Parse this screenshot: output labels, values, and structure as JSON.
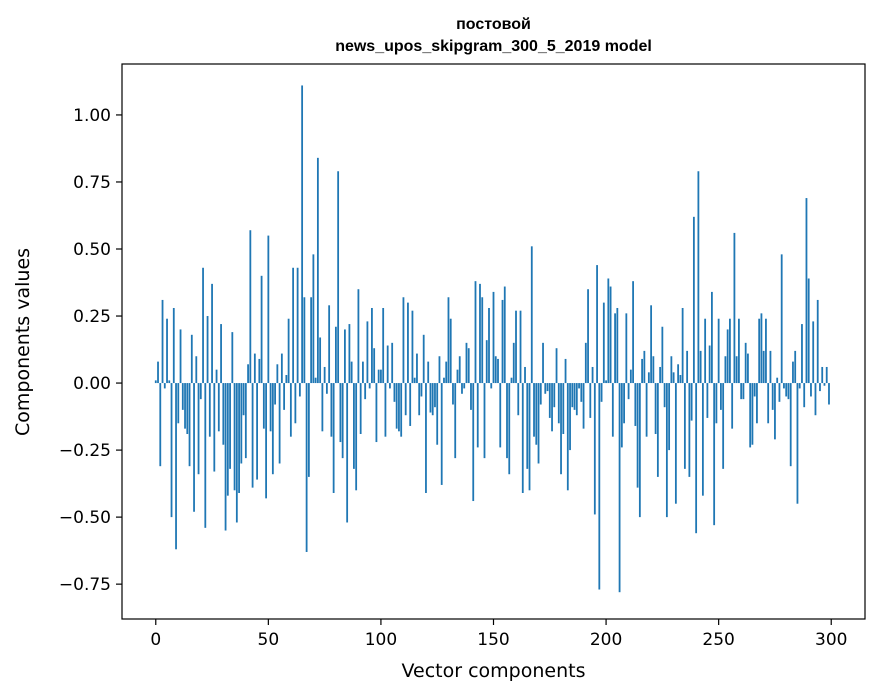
{
  "chart_data": {
    "type": "bar",
    "title_line1": "постовой",
    "title_line2": "news_upos_skipgram_300_5_2019 model",
    "xlabel": "Vector components",
    "ylabel": "Components values",
    "xlim": [
      -15,
      315
    ],
    "ylim": [
      -0.88,
      1.19
    ],
    "xticks": [
      0,
      50,
      100,
      150,
      200,
      250,
      300
    ],
    "yticks": [
      -0.75,
      -0.5,
      -0.25,
      0.0,
      0.25,
      0.5,
      0.75,
      1.0
    ],
    "ytick_labels": [
      "−0.75",
      "−0.50",
      "−0.25",
      "0.00",
      "0.25",
      "0.50",
      "0.75",
      "1.00"
    ],
    "bar_color": "#1f77b4",
    "grid": false,
    "values": [
      0.01,
      0.08,
      -0.31,
      0.31,
      -0.02,
      0.24,
      0.01,
      -0.5,
      0.28,
      -0.62,
      -0.15,
      0.2,
      -0.1,
      -0.17,
      -0.19,
      -0.31,
      0.18,
      -0.48,
      0.1,
      -0.34,
      -0.06,
      0.43,
      -0.54,
      0.25,
      -0.2,
      0.37,
      -0.33,
      0.05,
      -0.18,
      0.22,
      -0.23,
      -0.55,
      -0.42,
      -0.32,
      0.19,
      -0.4,
      -0.52,
      -0.41,
      -0.3,
      -0.12,
      -0.28,
      0.07,
      0.57,
      -0.39,
      0.11,
      -0.36,
      0.09,
      0.4,
      -0.17,
      -0.43,
      0.55,
      -0.18,
      -0.34,
      -0.08,
      0.07,
      -0.3,
      0.11,
      -0.1,
      0.03,
      0.24,
      -0.2,
      0.43,
      -0.15,
      0.43,
      -0.05,
      1.11,
      0.32,
      -0.63,
      -0.35,
      0.32,
      0.48,
      0.02,
      0.84,
      0.17,
      -0.18,
      0.06,
      -0.04,
      0.29,
      -0.2,
      -0.41,
      0.21,
      0.79,
      -0.22,
      -0.28,
      0.2,
      -0.52,
      0.22,
      0.08,
      -0.32,
      -0.4,
      0.35,
      -0.19,
      0.08,
      -0.06,
      0.23,
      -0.02,
      0.28,
      0.13,
      -0.22,
      0.05,
      0.05,
      0.28,
      -0.2,
      0.14,
      -0.02,
      0.15,
      -0.07,
      -0.17,
      -0.18,
      -0.2,
      0.32,
      -0.12,
      0.3,
      -0.16,
      0.27,
      0.02,
      0.11,
      -0.12,
      -0.05,
      0.18,
      -0.41,
      0.08,
      -0.11,
      -0.12,
      -0.09,
      -0.23,
      0.1,
      -0.38,
      0.02,
      0.08,
      0.32,
      0.24,
      -0.08,
      -0.28,
      0.05,
      0.1,
      -0.04,
      -0.02,
      0.15,
      0.13,
      -0.1,
      -0.44,
      0.38,
      -0.24,
      0.37,
      0.32,
      -0.28,
      0.16,
      0.28,
      -0.02,
      0.34,
      0.1,
      0.09,
      -0.24,
      0.31,
      0.36,
      -0.28,
      -0.34,
      0.02,
      0.15,
      0.27,
      -0.12,
      0.27,
      -0.41,
      0.06,
      -0.32,
      -0.4,
      0.51,
      -0.2,
      -0.23,
      -0.3,
      -0.08,
      0.15,
      -0.04,
      -0.03,
      -0.13,
      -0.18,
      -0.09,
      0.13,
      -0.15,
      -0.34,
      -0.19,
      0.09,
      -0.4,
      -0.25,
      -0.09,
      -0.1,
      -0.12,
      -0.02,
      -0.07,
      -0.17,
      0.15,
      0.35,
      -0.13,
      0.06,
      -0.49,
      0.44,
      -0.77,
      -0.07,
      0.3,
      0.01,
      0.39,
      0.36,
      -0.2,
      0.26,
      0.28,
      -0.78,
      -0.24,
      -0.15,
      0.26,
      -0.06,
      0.05,
      0.38,
      -0.16,
      -0.39,
      -0.5,
      0.09,
      0.12,
      -0.2,
      0.04,
      0.29,
      0.1,
      -0.19,
      -0.35,
      0.06,
      0.21,
      -0.09,
      -0.5,
      -0.25,
      0.1,
      0.04,
      -0.45,
      0.07,
      0.03,
      0.28,
      -0.32,
      0.12,
      -0.35,
      -0.14,
      0.62,
      -0.56,
      0.79,
      0.12,
      -0.42,
      0.24,
      -0.13,
      0.14,
      0.34,
      -0.53,
      -0.15,
      0.24,
      -0.1,
      -0.32,
      0.1,
      0.2,
      0.24,
      -0.17,
      0.56,
      0.1,
      0.24,
      -0.06,
      -0.06,
      0.15,
      0.11,
      -0.24,
      -0.23,
      -0.05,
      -0.15,
      0.24,
      0.26,
      0.12,
      0.24,
      -0.15,
      0.12,
      -0.1,
      -0.21,
      0.02,
      -0.07,
      0.48,
      -0.02,
      -0.05,
      -0.06,
      -0.31,
      0.08,
      0.12,
      -0.45,
      -0.02,
      0.22,
      -0.09,
      0.69,
      0.39,
      -0.05,
      0.23,
      -0.12,
      0.31,
      -0.03,
      0.06,
      -0.01,
      0.06,
      -0.08
    ]
  }
}
